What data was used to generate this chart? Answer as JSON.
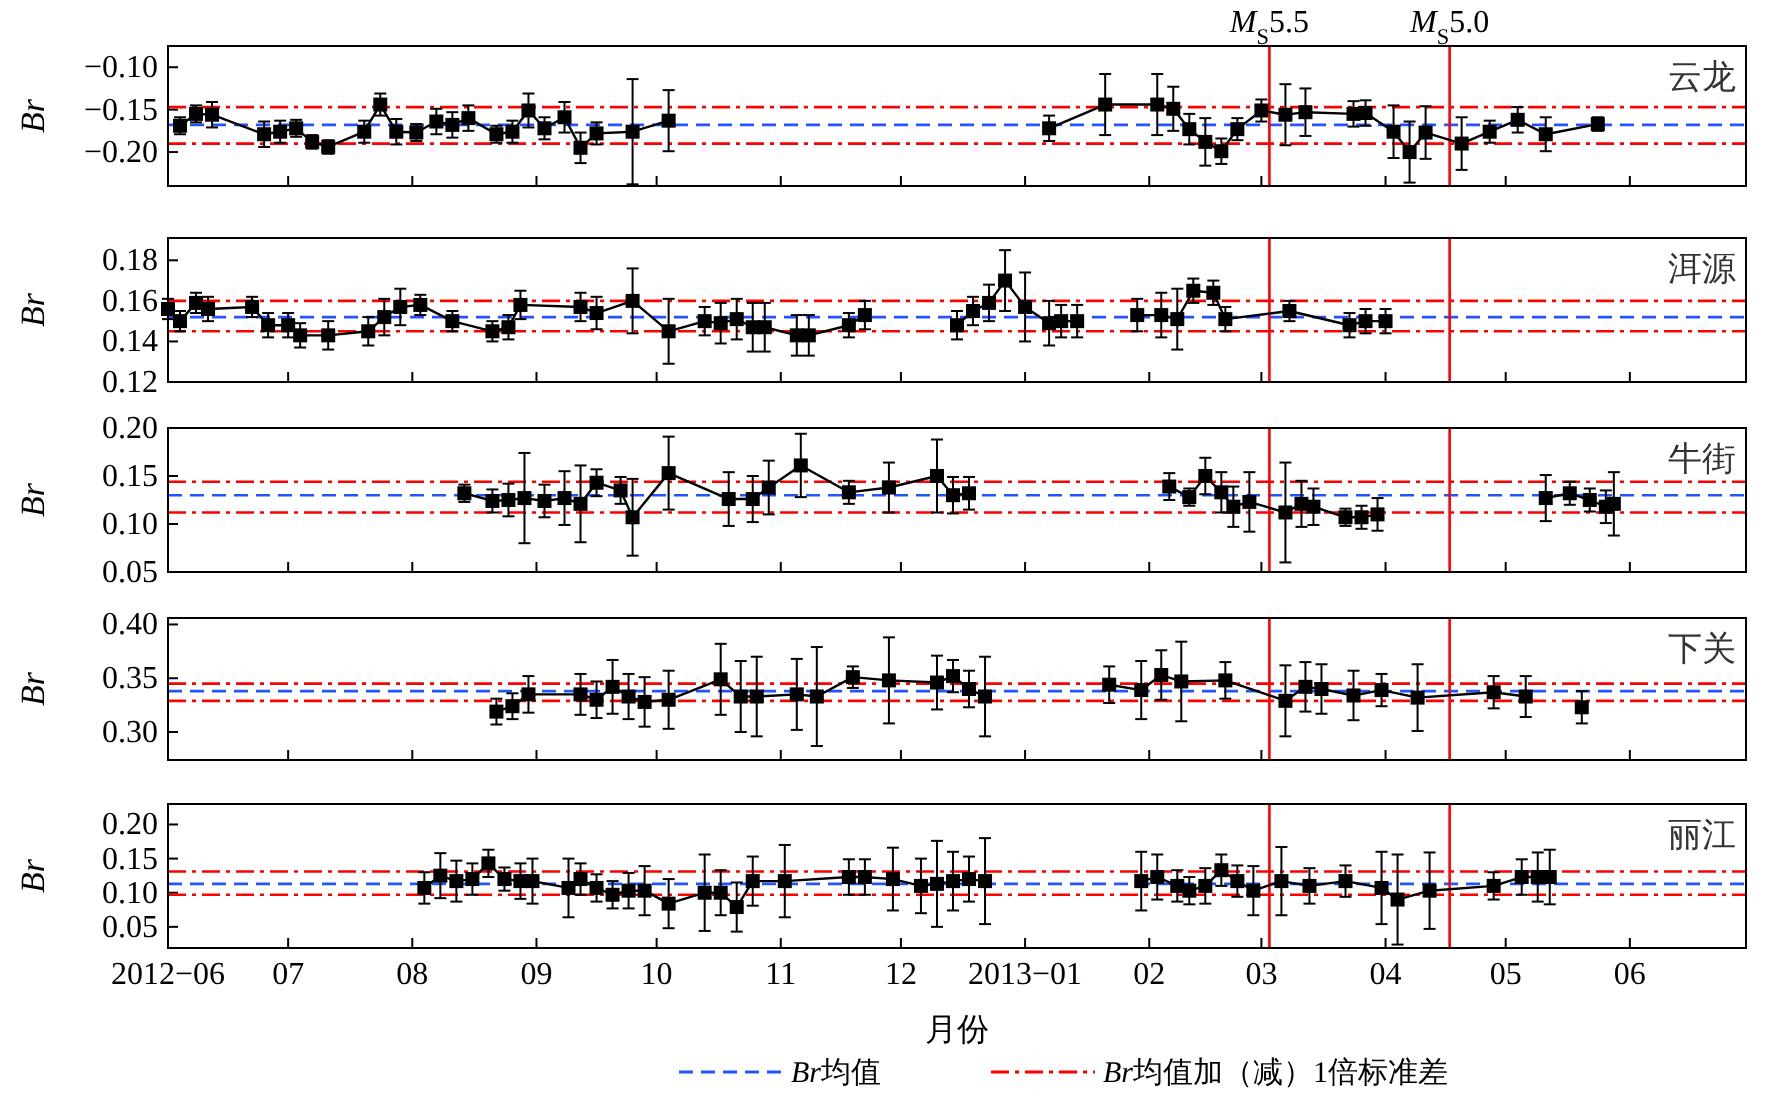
{
  "chart_data": [
    {
      "type": "line",
      "title": "云龙",
      "ylabel": "Br",
      "color": "#000000",
      "marker": "square",
      "tick_labels": "y",
      "xlim": [
        "2012-06-01",
        "2013-06-30"
      ],
      "xticks": [
        {
          "value": "2012-06-01",
          "label": null
        },
        {
          "value": "2012-07-01",
          "label": null
        },
        {
          "value": "2012-08-01",
          "label": null
        },
        {
          "value": "2012-09-01",
          "label": null
        },
        {
          "value": "2012-10-01",
          "label": null
        },
        {
          "value": "2012-11-01",
          "label": null
        },
        {
          "value": "2012-12-01",
          "label": null
        },
        {
          "value": "2013-01-01",
          "label": null
        },
        {
          "value": "2013-02-01",
          "label": null
        },
        {
          "value": "2013-03-01",
          "label": null
        },
        {
          "value": "2013-04-01",
          "label": null
        },
        {
          "value": "2013-05-01",
          "label": null
        },
        {
          "value": "2013-06-01",
          "label": null
        }
      ],
      "ylim": [
        -0.24,
        -0.075
      ],
      "yticks": [
        {
          "value": -0.2,
          "label": "−0.20"
        },
        {
          "value": -0.15,
          "label": "−0.15"
        },
        {
          "value": -0.1,
          "label": "−0.10"
        }
      ],
      "series": [
        {
          "x": [
            "2012-06-04",
            "2012-06-08",
            "2012-06-12",
            "2012-06-25",
            "2012-06-29",
            "2012-07-03",
            "2012-07-07",
            "2012-07-11",
            "2012-07-20",
            "2012-07-24",
            "2012-07-28",
            "2012-08-02",
            "2012-08-07",
            "2012-08-11",
            "2012-08-15",
            "2012-08-22",
            "2012-08-26",
            "2012-08-30",
            "2012-09-03",
            "2012-09-08",
            "2012-09-12",
            "2012-09-16",
            "2012-09-25",
            "2012-10-04"
          ],
          "values": [
            -0.169,
            -0.155,
            -0.156,
            -0.179,
            -0.176,
            -0.172,
            -0.188,
            -0.194,
            -0.176,
            -0.144,
            -0.176,
            -0.177,
            -0.164,
            -0.168,
            -0.16,
            -0.179,
            -0.176,
            -0.151,
            -0.172,
            -0.159,
            -0.195,
            -0.178,
            -0.176,
            -0.163
          ],
          "errors": [
            0.01,
            0.01,
            0.015,
            0.015,
            0.013,
            0.01,
            0.008,
            0.008,
            0.013,
            0.013,
            0.015,
            0.01,
            0.015,
            0.015,
            0.015,
            0.01,
            0.013,
            0.02,
            0.013,
            0.018,
            0.018,
            0.013,
            0.062,
            0.036
          ]
        },
        {
          "x": [
            "2013-01-07",
            "2013-01-21",
            "2013-02-03",
            "2013-02-07",
            "2013-02-11",
            "2013-02-15",
            "2013-02-19",
            "2013-02-23",
            "2013-03-01",
            "2013-03-07",
            "2013-03-12",
            "2013-03-24",
            "2013-03-27",
            "2013-04-03",
            "2013-04-07",
            "2013-04-11",
            "2013-04-20",
            "2013-04-27",
            "2013-05-04",
            "2013-05-11",
            "2013-05-24"
          ],
          "values": [
            -0.172,
            -0.144,
            -0.144,
            -0.149,
            -0.173,
            -0.188,
            -0.199,
            -0.173,
            -0.151,
            -0.156,
            -0.153,
            -0.155,
            -0.154,
            -0.176,
            -0.2,
            -0.177,
            -0.19,
            -0.176,
            -0.162,
            -0.179,
            -0.167
          ],
          "errors": [
            0.015,
            0.036,
            0.036,
            0.026,
            0.018,
            0.028,
            0.015,
            0.013,
            0.013,
            0.036,
            0.028,
            0.015,
            0.015,
            0.031,
            0.036,
            0.031,
            0.031,
            0.013,
            0.015,
            0.02,
            0.008
          ]
        }
      ],
      "ref_lines": [
        {
          "axis": "y",
          "value": -0.147,
          "color": "#ff0000",
          "line_style": "dashdot"
        },
        {
          "axis": "y",
          "value": -0.168,
          "color": "#2255ff",
          "line_style": "dashed"
        },
        {
          "axis": "y",
          "value": -0.19,
          "color": "#ff0000",
          "line_style": "dashdot"
        },
        {
          "axis": "x",
          "value": "2013-03-03",
          "color": "#ff0000",
          "line_style": "solid",
          "label": "M$_{S}$5.5"
        },
        {
          "axis": "x",
          "value": "2013-04-17",
          "color": "#ff0000",
          "line_style": "solid",
          "label": "M$_{S}$5.0"
        }
      ]
    },
    {
      "type": "line",
      "title": "洱源",
      "ylabel": "Br",
      "color": "#000000",
      "marker": "square",
      "tick_labels": "y",
      "xlim": [
        "2012-06-01",
        "2013-06-30"
      ],
      "xticks": [
        {
          "value": "2012-06-01",
          "label": null
        },
        {
          "value": "2012-07-01",
          "label": null
        },
        {
          "value": "2012-08-01",
          "label": null
        },
        {
          "value": "2012-09-01",
          "label": null
        },
        {
          "value": "2012-10-01",
          "label": null
        },
        {
          "value": "2012-11-01",
          "label": null
        },
        {
          "value": "2012-12-01",
          "label": null
        },
        {
          "value": "2013-01-01",
          "label": null
        },
        {
          "value": "2013-02-01",
          "label": null
        },
        {
          "value": "2013-03-01",
          "label": null
        },
        {
          "value": "2013-04-01",
          "label": null
        },
        {
          "value": "2013-05-01",
          "label": null
        },
        {
          "value": "2013-06-01",
          "label": null
        }
      ],
      "ylim": [
        0.12,
        0.191
      ],
      "yticks": [
        {
          "value": 0.12,
          "label": "0.12"
        },
        {
          "value": 0.14,
          "label": "0.14"
        },
        {
          "value": 0.16,
          "label": "0.16"
        },
        {
          "value": 0.18,
          "label": "0.18"
        }
      ],
      "series": [
        {
          "x": [
            "2012-06-01",
            "2012-06-04",
            "2012-06-08",
            "2012-06-11",
            "2012-06-22",
            "2012-06-26",
            "2012-07-01",
            "2012-07-04",
            "2012-07-11",
            "2012-07-21",
            "2012-07-25",
            "2012-07-29",
            "2012-08-03",
            "2012-08-11",
            "2012-08-21",
            "2012-08-25",
            "2012-08-28",
            "2012-09-12",
            "2012-09-16",
            "2012-09-25",
            "2012-10-04",
            "2012-10-13",
            "2012-10-17",
            "2012-10-21",
            "2012-10-25",
            "2012-10-28",
            "2012-11-05",
            "2012-11-08",
            "2012-11-18",
            "2012-11-22"
          ],
          "values": [
            0.156,
            0.15,
            0.159,
            0.156,
            0.157,
            0.148,
            0.148,
            0.143,
            0.143,
            0.145,
            0.152,
            0.157,
            0.158,
            0.15,
            0.145,
            0.147,
            0.158,
            0.157,
            0.154,
            0.16,
            0.145,
            0.15,
            0.149,
            0.151,
            0.147,
            0.147,
            0.143,
            0.143,
            0.148,
            0.153
          ],
          "errors": [
            0.005,
            0.005,
            0.005,
            0.006,
            0.005,
            0.006,
            0.006,
            0.006,
            0.007,
            0.007,
            0.009,
            0.009,
            0.005,
            0.005,
            0.005,
            0.006,
            0.007,
            0.007,
            0.008,
            0.016,
            0.016,
            0.007,
            0.01,
            0.01,
            0.012,
            0.012,
            0.01,
            0.01,
            0.006,
            0.007
          ]
        },
        {
          "x": [
            "2012-12-15",
            "2012-12-19",
            "2012-12-23",
            "2012-12-27",
            "2013-01-01",
            "2013-01-07",
            "2013-01-10",
            "2013-01-14"
          ],
          "values": [
            0.148,
            0.155,
            0.159,
            0.17,
            0.157,
            0.149,
            0.15,
            0.15
          ],
          "errors": [
            0.007,
            0.007,
            0.009,
            0.015,
            0.017,
            0.011,
            0.008,
            0.008
          ]
        },
        {
          "x": [
            "2013-01-29",
            "2013-02-04",
            "2013-02-08",
            "2013-02-12",
            "2013-02-17",
            "2013-02-20",
            "2013-03-08",
            "2013-03-23",
            "2013-03-27",
            "2013-04-01"
          ],
          "values": [
            0.153,
            0.153,
            0.151,
            0.165,
            0.164,
            0.151,
            0.155,
            0.148,
            0.15,
            0.15
          ],
          "errors": [
            0.008,
            0.011,
            0.015,
            0.006,
            0.006,
            0.006,
            0.005,
            0.006,
            0.006,
            0.006
          ]
        }
      ],
      "ref_lines": [
        {
          "axis": "y",
          "value": 0.16,
          "color": "#ff0000",
          "line_style": "dashdot"
        },
        {
          "axis": "y",
          "value": 0.152,
          "color": "#2255ff",
          "line_style": "dashed"
        },
        {
          "axis": "y",
          "value": 0.145,
          "color": "#ff0000",
          "line_style": "dashdot"
        },
        {
          "axis": "x",
          "value": "2013-03-03",
          "color": "#ff0000",
          "line_style": "solid"
        },
        {
          "axis": "x",
          "value": "2013-04-17",
          "color": "#ff0000",
          "line_style": "solid"
        }
      ]
    },
    {
      "type": "line",
      "title": "牛街",
      "ylabel": "Br",
      "color": "#000000",
      "marker": "square",
      "tick_labels": "y",
      "xlim": [
        "2012-06-01",
        "2013-06-30"
      ],
      "xticks": [
        {
          "value": "2012-06-01",
          "label": null
        },
        {
          "value": "2012-07-01",
          "label": null
        },
        {
          "value": "2012-08-01",
          "label": null
        },
        {
          "value": "2012-09-01",
          "label": null
        },
        {
          "value": "2012-10-01",
          "label": null
        },
        {
          "value": "2012-11-01",
          "label": null
        },
        {
          "value": "2012-12-01",
          "label": null
        },
        {
          "value": "2013-01-01",
          "label": null
        },
        {
          "value": "2013-02-01",
          "label": null
        },
        {
          "value": "2013-03-01",
          "label": null
        },
        {
          "value": "2013-04-01",
          "label": null
        },
        {
          "value": "2013-05-01",
          "label": null
        },
        {
          "value": "2013-06-01",
          "label": null
        }
      ],
      "ylim": [
        0.05,
        0.2
      ],
      "yticks": [
        {
          "value": 0.05,
          "label": "0.05"
        },
        {
          "value": 0.1,
          "label": "0.10"
        },
        {
          "value": 0.15,
          "label": "0.15"
        },
        {
          "value": 0.2,
          "label": "0.20"
        }
      ],
      "series": [
        {
          "x": [
            "2012-08-14",
            "2012-08-21",
            "2012-08-25",
            "2012-08-29",
            "2012-09-03",
            "2012-09-08",
            "2012-09-12",
            "2012-09-16",
            "2012-09-22",
            "2012-09-25",
            "2012-10-04",
            "2012-10-19",
            "2012-10-25",
            "2012-10-29",
            "2012-11-06",
            "2012-11-18",
            "2012-11-28",
            "2012-12-10",
            "2012-12-14",
            "2012-12-18"
          ],
          "values": [
            0.132,
            0.124,
            0.125,
            0.127,
            0.124,
            0.127,
            0.121,
            0.143,
            0.135,
            0.107,
            0.153,
            0.126,
            0.126,
            0.138,
            0.161,
            0.133,
            0.138,
            0.15,
            0.13,
            0.132
          ],
          "errors": [
            0.009,
            0.012,
            0.017,
            0.047,
            0.017,
            0.028,
            0.04,
            0.014,
            0.014,
            0.04,
            0.038,
            0.028,
            0.024,
            0.028,
            0.033,
            0.012,
            0.026,
            0.038,
            0.019,
            0.017
          ]
        },
        {
          "x": [
            "2013-02-06",
            "2013-02-11",
            "2013-02-15",
            "2013-02-19",
            "2013-02-22",
            "2013-02-26",
            "2013-03-07",
            "2013-03-11",
            "2013-03-14",
            "2013-03-22",
            "2013-03-26",
            "2013-03-30"
          ],
          "values": [
            0.139,
            0.128,
            0.15,
            0.133,
            0.118,
            0.123,
            0.112,
            0.121,
            0.118,
            0.107,
            0.107,
            0.11
          ],
          "errors": [
            0.014,
            0.009,
            0.019,
            0.021,
            0.021,
            0.031,
            0.052,
            0.024,
            0.019,
            0.009,
            0.012,
            0.017
          ]
        },
        {
          "x": [
            "2013-05-11",
            "2013-05-17",
            "2013-05-22",
            "2013-05-26",
            "2013-05-28"
          ],
          "values": [
            0.127,
            0.132,
            0.125,
            0.118,
            0.121
          ],
          "errors": [
            0.024,
            0.012,
            0.012,
            0.017,
            0.033
          ]
        }
      ],
      "ref_lines": [
        {
          "axis": "y",
          "value": 0.144,
          "color": "#ff0000",
          "line_style": "dashdot"
        },
        {
          "axis": "y",
          "value": 0.13,
          "color": "#2255ff",
          "line_style": "dashed"
        },
        {
          "axis": "y",
          "value": 0.112,
          "color": "#ff0000",
          "line_style": "dashdot"
        },
        {
          "axis": "x",
          "value": "2013-03-03",
          "color": "#ff0000",
          "line_style": "solid"
        },
        {
          "axis": "x",
          "value": "2013-04-17",
          "color": "#ff0000",
          "line_style": "solid"
        }
      ]
    },
    {
      "type": "line",
      "title": "下关",
      "ylabel": "Br",
      "color": "#000000",
      "marker": "square",
      "tick_labels": "y",
      "xlim": [
        "2012-06-01",
        "2013-06-30"
      ],
      "xticks": [
        {
          "value": "2012-06-01",
          "label": null
        },
        {
          "value": "2012-07-01",
          "label": null
        },
        {
          "value": "2012-08-01",
          "label": null
        },
        {
          "value": "2012-09-01",
          "label": null
        },
        {
          "value": "2012-10-01",
          "label": null
        },
        {
          "value": "2012-11-01",
          "label": null
        },
        {
          "value": "2012-12-01",
          "label": null
        },
        {
          "value": "2013-01-01",
          "label": null
        },
        {
          "value": "2013-02-01",
          "label": null
        },
        {
          "value": "2013-03-01",
          "label": null
        },
        {
          "value": "2013-04-01",
          "label": null
        },
        {
          "value": "2013-05-01",
          "label": null
        },
        {
          "value": "2013-06-01",
          "label": null
        }
      ],
      "ylim": [
        0.274,
        0.406
      ],
      "yticks": [
        {
          "value": 0.3,
          "label": "0.30"
        },
        {
          "value": 0.35,
          "label": "0.35"
        },
        {
          "value": 0.4,
          "label": "0.40"
        }
      ],
      "series": [
        {
          "x": [
            "2012-08-22",
            "2012-08-26",
            "2012-08-30",
            "2012-09-12",
            "2012-09-16",
            "2012-09-20",
            "2012-09-24",
            "2012-09-28",
            "2012-10-04",
            "2012-10-17",
            "2012-10-22",
            "2012-10-26",
            "2012-11-05",
            "2012-11-10",
            "2012-11-19",
            "2012-11-28",
            "2012-12-10",
            "2012-12-14",
            "2012-12-18",
            "2012-12-22"
          ],
          "values": [
            0.319,
            0.324,
            0.335,
            0.335,
            0.33,
            0.342,
            0.333,
            0.328,
            0.33,
            0.349,
            0.333,
            0.333,
            0.335,
            0.333,
            0.351,
            0.348,
            0.346,
            0.352,
            0.34,
            0.333
          ],
          "errors": [
            0.012,
            0.012,
            0.017,
            0.019,
            0.017,
            0.025,
            0.021,
            0.023,
            0.027,
            0.033,
            0.033,
            0.037,
            0.033,
            0.046,
            0.01,
            0.04,
            0.025,
            0.015,
            0.017,
            0.037
          ]
        },
        {
          "x": [
            "2013-01-22",
            "2013-01-30",
            "2013-02-04",
            "2013-02-09",
            "2013-02-20",
            "2013-03-07",
            "2013-03-12",
            "2013-03-16",
            "2013-03-24",
            "2013-03-31",
            "2013-04-09",
            "2013-04-28",
            "2013-05-06"
          ],
          "values": [
            0.344,
            0.339,
            0.353,
            0.347,
            0.348,
            0.329,
            0.342,
            0.34,
            0.334,
            0.339,
            0.332,
            0.337,
            0.333
          ],
          "errors": [
            0.017,
            0.027,
            0.023,
            0.037,
            0.017,
            0.033,
            0.023,
            0.023,
            0.023,
            0.015,
            0.031,
            0.015,
            0.019
          ]
        },
        {
          "x": [
            "2013-05-20"
          ],
          "values": [
            0.323
          ],
          "errors": [
            0.015
          ]
        }
      ],
      "ref_lines": [
        {
          "axis": "y",
          "value": 0.345,
          "color": "#ff0000",
          "line_style": "dashdot"
        },
        {
          "axis": "y",
          "value": 0.338,
          "color": "#2255ff",
          "line_style": "dashed"
        },
        {
          "axis": "y",
          "value": 0.329,
          "color": "#ff0000",
          "line_style": "dashdot"
        },
        {
          "axis": "x",
          "value": "2013-03-03",
          "color": "#ff0000",
          "line_style": "solid"
        },
        {
          "axis": "x",
          "value": "2013-04-17",
          "color": "#ff0000",
          "line_style": "solid"
        }
      ]
    },
    {
      "type": "line",
      "title": "丽江",
      "ylabel": "Br",
      "xlabel": "月份",
      "color": "#000000",
      "marker": "square",
      "legend": "bottom",
      "xlim": [
        "2012-06-01",
        "2013-06-30"
      ],
      "xticks": [
        {
          "value": "2012-06-01",
          "label": "2012−06"
        },
        {
          "value": "2012-07-01",
          "label": "07"
        },
        {
          "value": "2012-08-01",
          "label": "08"
        },
        {
          "value": "2012-09-01",
          "label": "09"
        },
        {
          "value": "2012-10-01",
          "label": "10"
        },
        {
          "value": "2012-11-01",
          "label": "11"
        },
        {
          "value": "2012-12-01",
          "label": "12"
        },
        {
          "value": "2013-01-01",
          "label": "2013−01"
        },
        {
          "value": "2013-02-01",
          "label": "02"
        },
        {
          "value": "2013-03-01",
          "label": "03"
        },
        {
          "value": "2013-04-01",
          "label": "04"
        },
        {
          "value": "2013-05-01",
          "label": "05"
        },
        {
          "value": "2013-06-01",
          "label": "06"
        }
      ],
      "ylim": [
        0.019,
        0.23
      ],
      "yticks": [
        {
          "value": 0.05,
          "label": "0.05"
        },
        {
          "value": 0.1,
          "label": "0.10"
        },
        {
          "value": 0.15,
          "label": "0.15"
        },
        {
          "value": 0.2,
          "label": "0.20"
        }
      ],
      "series": [
        {
          "x": [
            "2012-08-04",
            "2012-08-08",
            "2012-08-12",
            "2012-08-16",
            "2012-08-20",
            "2012-08-24",
            "2012-08-28",
            "2012-08-31",
            "2012-09-09",
            "2012-09-12",
            "2012-09-16",
            "2012-09-20",
            "2012-09-24",
            "2012-09-28",
            "2012-10-04",
            "2012-10-13",
            "2012-10-17",
            "2012-10-21",
            "2012-10-25",
            "2012-11-02",
            "2012-11-18",
            "2012-11-22",
            "2012-11-29",
            "2012-12-06",
            "2012-12-10",
            "2012-12-14",
            "2012-12-18",
            "2012-12-22"
          ],
          "values": [
            0.107,
            0.125,
            0.117,
            0.12,
            0.143,
            0.12,
            0.117,
            0.117,
            0.107,
            0.12,
            0.107,
            0.097,
            0.103,
            0.103,
            0.084,
            0.1,
            0.1,
            0.079,
            0.117,
            0.117,
            0.123,
            0.123,
            0.12,
            0.11,
            0.113,
            0.117,
            0.12,
            0.117
          ],
          "errors": [
            0.023,
            0.033,
            0.03,
            0.023,
            0.02,
            0.017,
            0.026,
            0.033,
            0.043,
            0.023,
            0.02,
            0.02,
            0.026,
            0.036,
            0.036,
            0.056,
            0.033,
            0.036,
            0.036,
            0.053,
            0.026,
            0.026,
            0.046,
            0.04,
            0.063,
            0.043,
            0.033,
            0.063
          ]
        },
        {
          "x": [
            "2013-01-30",
            "2013-02-03",
            "2013-02-08",
            "2013-02-11",
            "2013-02-15",
            "2013-02-19",
            "2013-02-23",
            "2013-02-27",
            "2013-03-06",
            "2013-03-13",
            "2013-03-22",
            "2013-03-31",
            "2013-04-04",
            "2013-04-12",
            "2013-04-28",
            "2013-05-05",
            "2013-05-09",
            "2013-05-12"
          ],
          "values": [
            0.117,
            0.123,
            0.11,
            0.103,
            0.11,
            0.133,
            0.117,
            0.103,
            0.117,
            0.11,
            0.117,
            0.107,
            0.09,
            0.103,
            0.11,
            0.123,
            0.123,
            0.123
          ],
          "errors": [
            0.043,
            0.033,
            0.023,
            0.02,
            0.026,
            0.023,
            0.023,
            0.036,
            0.05,
            0.026,
            0.023,
            0.053,
            0.066,
            0.056,
            0.02,
            0.026,
            0.036,
            0.04
          ]
        }
      ],
      "ref_lines": [
        {
          "axis": "y",
          "value": 0.131,
          "color": "#ff0000",
          "line_style": "dashdot",
          "label": "Br均值加（减）1倍标准差"
        },
        {
          "axis": "y",
          "value": 0.113,
          "color": "#2255ff",
          "line_style": "dashed",
          "label": "Br均值"
        },
        {
          "axis": "y",
          "value": 0.097,
          "color": "#ff0000",
          "line_style": "dashdot"
        },
        {
          "axis": "x",
          "value": "2013-03-03",
          "color": "#ff0000",
          "line_style": "solid"
        },
        {
          "axis": "x",
          "value": "2013-04-17",
          "color": "#ff0000",
          "line_style": "solid"
        }
      ]
    }
  ]
}
